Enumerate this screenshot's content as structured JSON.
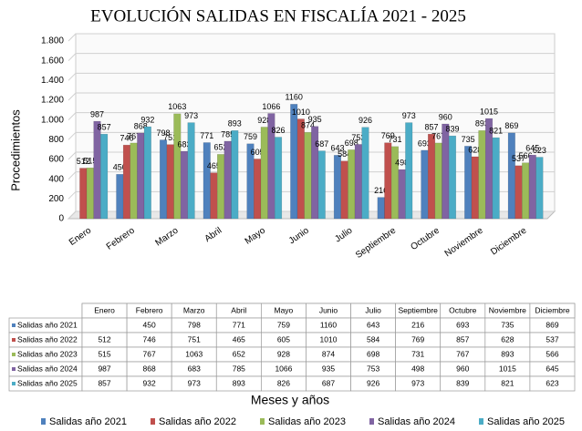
{
  "chart_data": {
    "type": "bar",
    "title": "EVOLUCIÓN SALIDAS EN FISCALÍA 2021 - 2025",
    "y_label": "Procedimientos",
    "x_label": "Meses y años",
    "categories": [
      "Enero",
      "Febrero",
      "Marzo",
      "Abril",
      "Mayo",
      "Junio",
      "Julio",
      "Septiembre",
      "Octubre",
      "Noviembre",
      "Diciembre"
    ],
    "series": [
      {
        "name": "Salidas año 2021",
        "color": "#4f81bd",
        "values": [
          null,
          450,
          798,
          771,
          759,
          1160,
          643,
          216,
          693,
          735,
          869
        ]
      },
      {
        "name": "Salidas año 2022",
        "color": "#c0504d",
        "values": [
          512,
          746,
          751,
          465,
          605,
          1010,
          584,
          769,
          857,
          628,
          537
        ]
      },
      {
        "name": "Salidas año 2023",
        "color": "#9bbb59",
        "values": [
          515,
          767,
          1063,
          652,
          928,
          874,
          698,
          731,
          767,
          893,
          566
        ]
      },
      {
        "name": "Salidas año 2024",
        "color": "#8064a2",
        "values": [
          987,
          868,
          683,
          785,
          1066,
          935,
          753,
          498,
          960,
          1015,
          645
        ]
      },
      {
        "name": "Salidas año 2025",
        "color": "#4bacc6",
        "values": [
          857,
          932,
          973,
          893,
          826,
          687,
          926,
          973,
          839,
          821,
          623
        ]
      }
    ],
    "ylim": [
      0,
      1800
    ],
    "yticks": [
      0,
      200,
      400,
      600,
      800,
      {
        "value": 1000,
        "label": "1.000"
      },
      {
        "value": 1200,
        "label": "1.200"
      },
      {
        "value": 1400,
        "label": "1.400"
      },
      {
        "value": 1600,
        "label": "1.600"
      },
      {
        "value": 1800,
        "label": "1.800"
      }
    ],
    "grid": true
  }
}
